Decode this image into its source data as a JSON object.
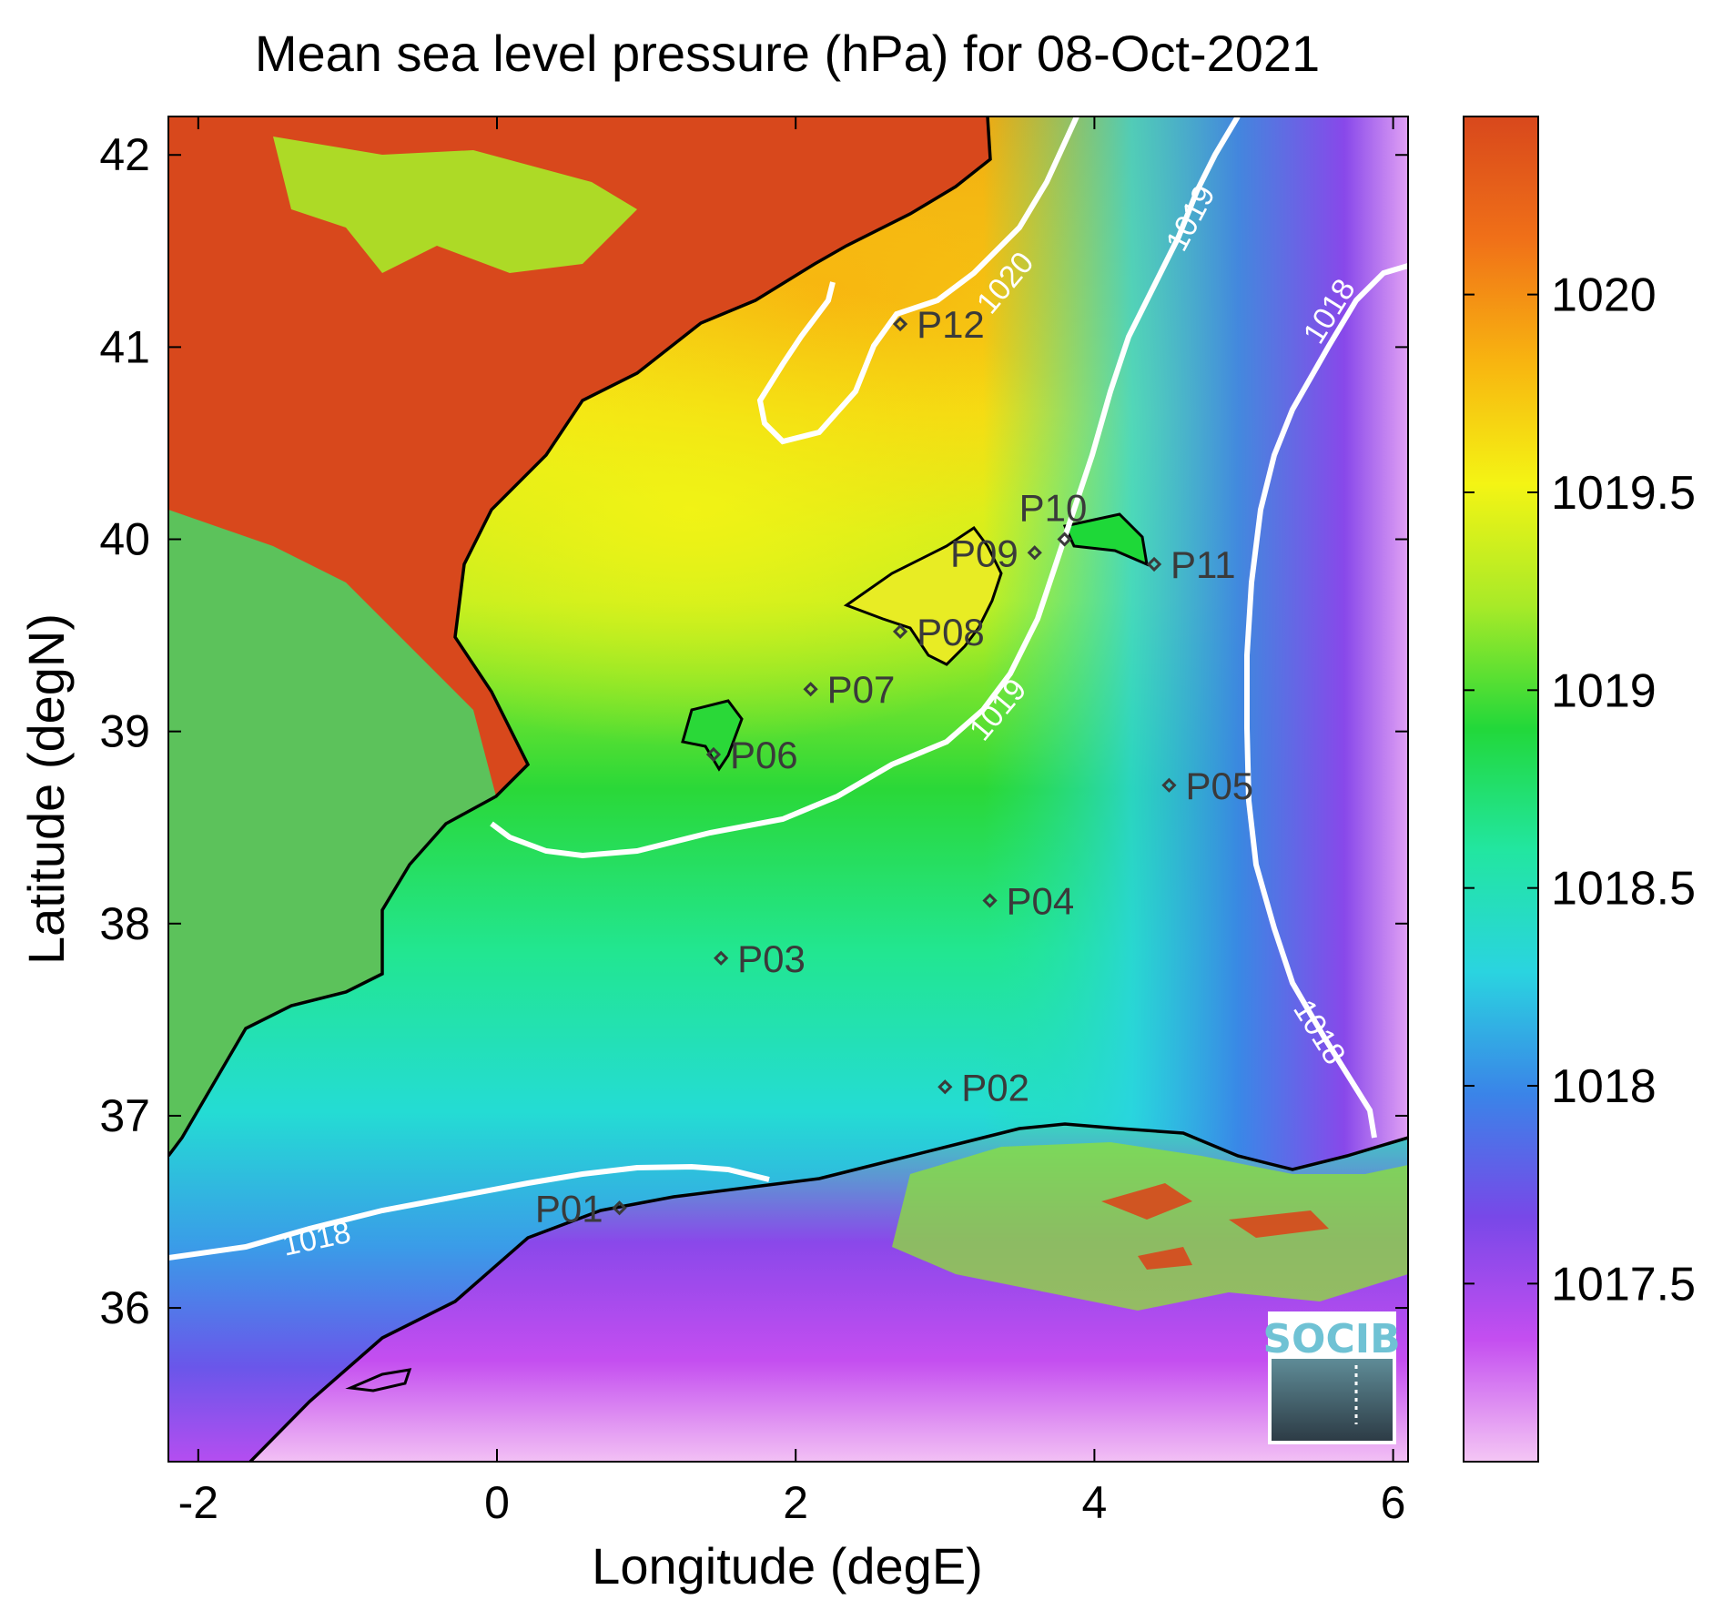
{
  "title": "Mean sea level pressure (hPa) for 08-Oct-2021",
  "x_axis": {
    "label": "Longitude (degE)",
    "range": [
      -2.2,
      6.1
    ],
    "ticks": [
      -2,
      0,
      2,
      4,
      6
    ],
    "tick_labels": [
      "-2",
      "0",
      "2",
      "4",
      "6"
    ]
  },
  "y_axis": {
    "label": "Latitude (degN)",
    "range": [
      35.2,
      42.2
    ],
    "ticks": [
      36,
      37,
      38,
      39,
      40,
      41,
      42
    ],
    "tick_labels": [
      "36",
      "37",
      "38",
      "39",
      "40",
      "41",
      "42"
    ]
  },
  "colorbar": {
    "range": [
      1017.05,
      1020.45
    ],
    "ticks": [
      1017.5,
      1018,
      1018.5,
      1019,
      1019.5,
      1020
    ],
    "tick_labels": [
      "1017.5",
      "1018",
      "1018.5",
      "1019",
      "1019.5",
      "1020"
    ],
    "colormap": [
      "#f4c6f4",
      "#c44ef0",
      "#7848e8",
      "#3a84e8",
      "#2ad4e0",
      "#22e6a0",
      "#22d83a",
      "#a8ea28",
      "#f4f414",
      "#f8b410",
      "#f07018",
      "#d8481c"
    ]
  },
  "chart_data": {
    "type": "heatmap",
    "variable": "Mean sea level pressure",
    "units": "hPa",
    "date": "08-Oct-2021",
    "points": [
      {
        "label": "P01",
        "lon": 0.82,
        "lat": 36.52
      },
      {
        "label": "P02",
        "lon": 3.0,
        "lat": 37.15
      },
      {
        "label": "P03",
        "lon": 1.5,
        "lat": 37.82
      },
      {
        "label": "P04",
        "lon": 3.3,
        "lat": 38.12
      },
      {
        "label": "P05",
        "lon": 4.5,
        "lat": 38.72
      },
      {
        "label": "P06",
        "lon": 1.45,
        "lat": 38.88
      },
      {
        "label": "P07",
        "lon": 2.1,
        "lat": 39.22
      },
      {
        "label": "P08",
        "lon": 2.7,
        "lat": 39.52
      },
      {
        "label": "P09",
        "lon": 3.6,
        "lat": 39.93
      },
      {
        "label": "P10",
        "lon": 3.8,
        "lat": 40.0
      },
      {
        "label": "P11",
        "lon": 4.4,
        "lat": 39.87
      },
      {
        "label": "P12",
        "lon": 2.7,
        "lat": 41.12
      }
    ],
    "contours": [
      {
        "level": 1020,
        "label": "1020"
      },
      {
        "level": 1019,
        "label": "1019"
      },
      {
        "level": 1018,
        "label": "1018"
      }
    ]
  },
  "logo": {
    "text": "SOCIB"
  },
  "icons": {
    "point_marker": "diamond-marker-icon"
  }
}
